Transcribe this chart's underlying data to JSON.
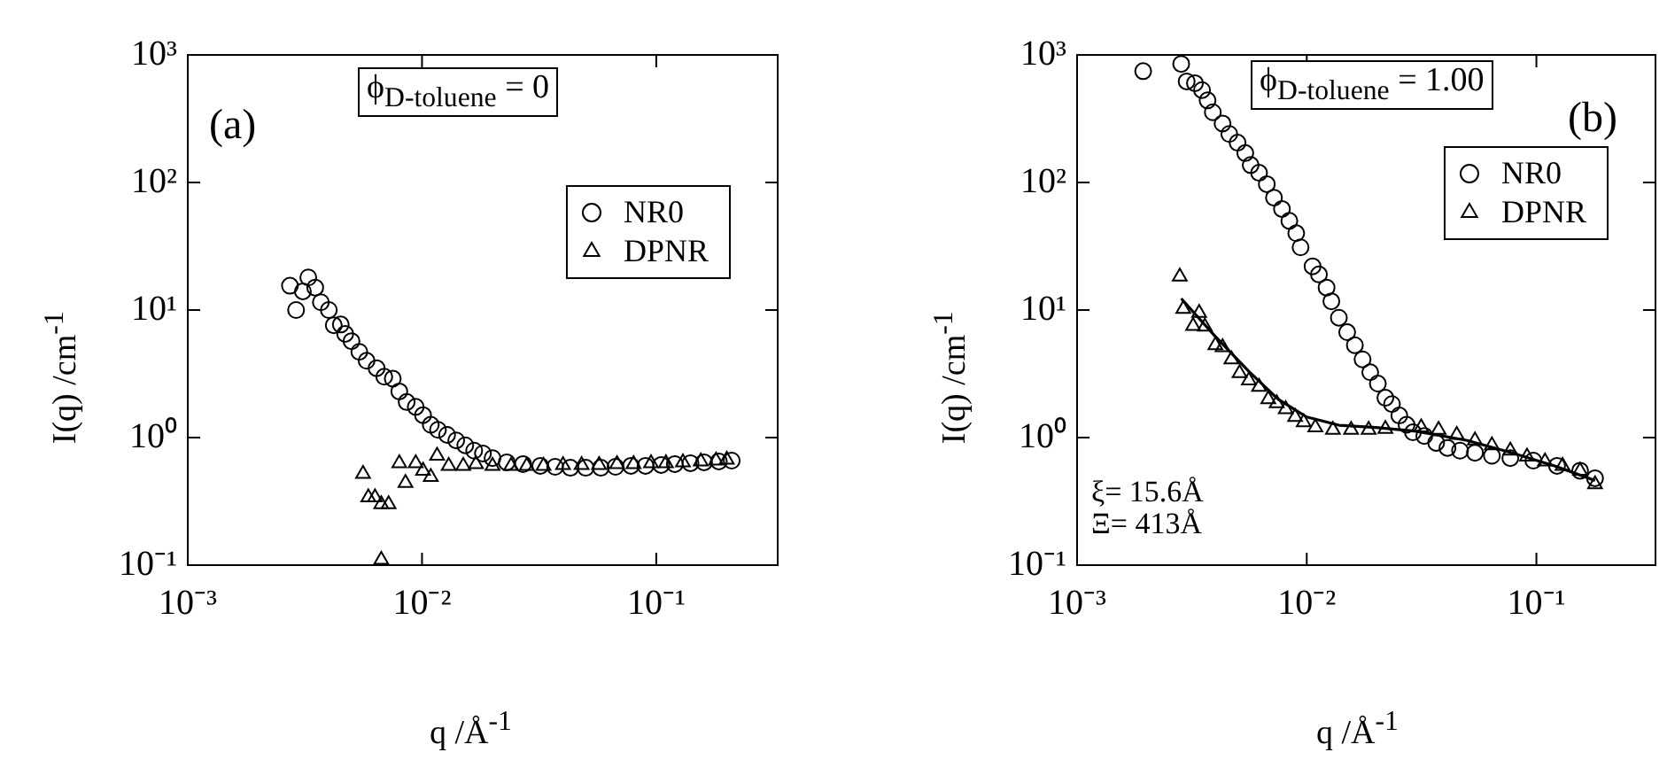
{
  "chart_data": [
    {
      "type": "scatter",
      "xlabel": "q /Å$^{-1}$",
      "ylabel": "I(q) /cm$^{-1}$",
      "log": "xy",
      "grid": false,
      "legend": "top right",
      "xlim": [
        0.001,
        0.33
      ],
      "ylim": [
        0.1,
        1000
      ],
      "xticks": [
        {
          "value": 0.001,
          "label": "10⁻³"
        },
        {
          "value": 0.01,
          "label": "10⁻²"
        },
        {
          "value": 0.1,
          "label": "10⁻¹"
        }
      ],
      "yticks": [
        {
          "value": 0.1,
          "label": "10⁻¹"
        },
        {
          "value": 1,
          "label": "10⁰"
        },
        {
          "value": 10,
          "label": "10¹"
        },
        {
          "value": 100,
          "label": "10²"
        },
        {
          "value": 1000,
          "label": "10³"
        }
      ],
      "annotations": [
        "(a)",
        "ϕ$_{D-toluene}$ = 0"
      ],
      "series": [
        {
          "name": "NR0",
          "color": "#000000",
          "marker": "circle",
          "x": [
            0.00273,
            0.0029,
            0.0031,
            0.00327,
            0.0035,
            0.0037,
            0.004,
            0.0042,
            0.0045,
            0.0047,
            0.005,
            0.0054,
            0.0058,
            0.0064,
            0.0069,
            0.0075,
            0.008,
            0.0086,
            0.0094,
            0.0101,
            0.0109,
            0.0117,
            0.0128,
            0.014,
            0.0153,
            0.0167,
            0.0182,
            0.02,
            0.023,
            0.027,
            0.032,
            0.037,
            0.043,
            0.05,
            0.058,
            0.067,
            0.078,
            0.09,
            0.105,
            0.12,
            0.14,
            0.16,
            0.185,
            0.21
          ],
          "values": [
            15.5,
            10,
            14,
            18,
            15,
            11.5,
            10,
            7.6,
            7.7,
            6.5,
            5.7,
            4.7,
            4,
            3.5,
            3,
            2.9,
            2.3,
            1.9,
            1.74,
            1.5,
            1.26,
            1.15,
            1.05,
            0.95,
            0.87,
            0.79,
            0.75,
            0.69,
            0.64,
            0.62,
            0.6,
            0.59,
            0.58,
            0.58,
            0.58,
            0.59,
            0.6,
            0.6,
            0.61,
            0.62,
            0.63,
            0.64,
            0.65,
            0.66
          ]
        },
        {
          "name": "DPNR",
          "color": "#000000",
          "marker": "triangle",
          "x": [
            0.0056,
            0.0059,
            0.0063,
            0.0067,
            0.0067,
            0.0072,
            0.008,
            0.0085,
            0.0094,
            0.0101,
            0.0109,
            0.0116,
            0.013,
            0.015,
            0.017,
            0.02,
            0.024,
            0.028,
            0.033,
            0.04,
            0.048,
            0.057,
            0.068,
            0.08,
            0.095,
            0.11,
            0.13,
            0.155,
            0.18,
            0.2
          ],
          "values": [
            0.52,
            0.34,
            0.34,
            0.3,
            0.11,
            0.3,
            0.63,
            0.44,
            0.63,
            0.55,
            0.49,
            0.72,
            0.6,
            0.6,
            0.62,
            0.6,
            0.6,
            0.6,
            0.6,
            0.61,
            0.61,
            0.61,
            0.62,
            0.62,
            0.63,
            0.63,
            0.64,
            0.65,
            0.66,
            0.67
          ]
        }
      ]
    },
    {
      "type": "scatter",
      "xlabel": "q /Å$^{-1}$",
      "ylabel": "I(q) /cm$^{-1}$",
      "log": "xy",
      "grid": false,
      "legend": "top right",
      "xlim": [
        0.001,
        0.33
      ],
      "ylim": [
        0.1,
        1000
      ],
      "xticks": [
        {
          "value": 0.001,
          "label": "10⁻³"
        },
        {
          "value": 0.01,
          "label": "10⁻²"
        },
        {
          "value": 0.1,
          "label": "10⁻¹"
        }
      ],
      "yticks": [
        {
          "value": 0.1,
          "label": "10⁻¹"
        },
        {
          "value": 1,
          "label": "10⁰"
        },
        {
          "value": 10,
          "label": "10¹"
        },
        {
          "value": 100,
          "label": "10²"
        },
        {
          "value": 1000,
          "label": "10³"
        }
      ],
      "annotations": [
        "(b)",
        "ϕ$_{D-toluene}$ = 1.00",
        "ξ= 15.6Å",
        "Ξ= 413Å"
      ],
      "series": [
        {
          "name": "NR0",
          "color": "#000000",
          "marker": "circle",
          "x": [
            0.00194,
            0.00284,
            0.003,
            0.00326,
            0.0035,
            0.0037,
            0.0039,
            0.0043,
            0.0046,
            0.005,
            0.0054,
            0.0057,
            0.0062,
            0.0067,
            0.0072,
            0.0078,
            0.0084,
            0.009,
            0.0094,
            0.0106,
            0.0113,
            0.0122,
            0.0128,
            0.0138,
            0.015,
            0.0162,
            0.0175,
            0.0189,
            0.0204,
            0.022,
            0.0235,
            0.0253,
            0.0272,
            0.029,
            0.0325,
            0.0366,
            0.041,
            0.0465,
            0.054,
            0.064,
            0.077,
            0.097,
            0.123,
            0.155,
            0.18
          ],
          "values": [
            746,
            850,
            620,
            600,
            530,
            440,
            355,
            290,
            240,
            205,
            170,
            137,
            119,
            97,
            76,
            62,
            50,
            40,
            31,
            22,
            19,
            15,
            11.7,
            8.7,
            6.7,
            5.3,
            4.1,
            3.25,
            2.65,
            2.05,
            1.83,
            1.49,
            1.26,
            1.1,
            1.03,
            0.91,
            0.83,
            0.79,
            0.76,
            0.72,
            0.69,
            0.66,
            0.6,
            0.55,
            0.48
          ]
        },
        {
          "name": "DPNR",
          "color": "#000000",
          "marker": "triangle",
          "x": [
            0.0028,
            0.0029,
            0.0032,
            0.0034,
            0.0036,
            0.004,
            0.0043,
            0.0047,
            0.0051,
            0.0056,
            0.0062,
            0.0068,
            0.0074,
            0.0081,
            0.0089,
            0.0097,
            0.0109,
            0.013,
            0.0156,
            0.0186,
            0.022,
            0.0265,
            0.0315,
            0.0375,
            0.045,
            0.054,
            0.064,
            0.077,
            0.091,
            0.109,
            0.13,
            0.155,
            0.18
          ],
          "values": [
            18.3,
            10.2,
            7.5,
            9.5,
            7.4,
            5.3,
            5.1,
            4.1,
            3.2,
            2.8,
            2.5,
            2,
            1.86,
            1.67,
            1.45,
            1.32,
            1.2,
            1.15,
            1.15,
            1.15,
            1.17,
            null,
            1.2,
            1.15,
            1.05,
            0.95,
            0.87,
            0.79,
            0.71,
            0.65,
            0.6,
            0.55,
            0.43
          ]
        },
        {
          "type": "line",
          "color": "#000000",
          "marker": "none",
          "line_style": "solid",
          "x": [
            0.00284,
            0.004,
            0.0056,
            0.0075,
            0.01,
            0.0138,
            0.02,
            0.03,
            0.05,
            0.08,
            0.12,
            0.18
          ],
          "values": [
            12.3,
            6.2,
            3.3,
            2,
            1.45,
            1.25,
            1.2,
            1.12,
            0.95,
            0.75,
            0.6,
            0.46
          ]
        }
      ]
    }
  ]
}
